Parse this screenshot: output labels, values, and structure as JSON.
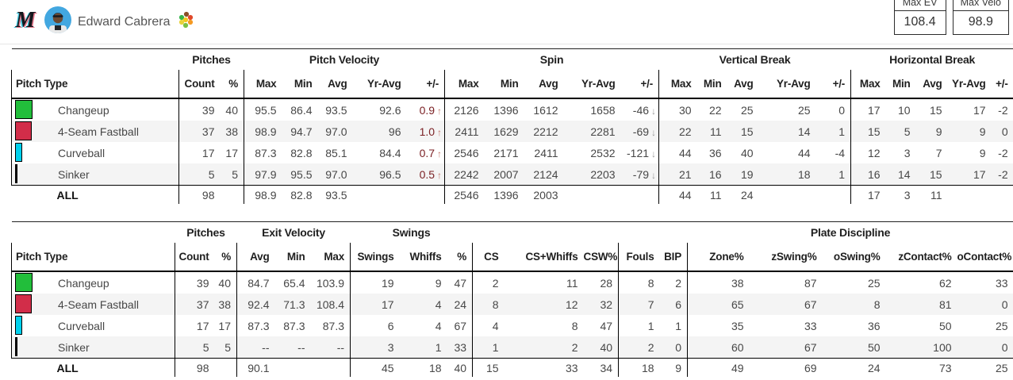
{
  "header": {
    "team": "Miami Marlins",
    "player_name": "Edward Cabrera",
    "stat_boxes": [
      {
        "label": "Max EV",
        "value": "108.4"
      },
      {
        "label": "Max Velo",
        "value": "98.9"
      }
    ]
  },
  "pitch_colors": {
    "changeup": "#22BE3B",
    "four_seam_fastball": "#D22D49",
    "curveball": "#00D1ED",
    "sinker": "#141414"
  },
  "t1": {
    "groups": [
      {
        "label": "",
        "span": 1
      },
      {
        "label": "Pitches",
        "span": 2
      },
      {
        "label": "Pitch Velocity",
        "span": 5
      },
      {
        "label": "Spin",
        "span": 5
      },
      {
        "label": "Vertical Break",
        "span": 5
      },
      {
        "label": "Horizontal Break",
        "span": 5
      }
    ],
    "columns": [
      "Pitch Type",
      "Count",
      "%",
      "Max",
      "Min",
      "Avg",
      "Yr-Avg",
      "+/-",
      "Max",
      "Min",
      "Avg",
      "Yr-Avg",
      "+/-",
      "Max",
      "Min",
      "Avg",
      "Yr-Avg",
      "+/-",
      "Max",
      "Min",
      "Avg",
      "Yr-Avg",
      "+/-"
    ],
    "rows": [
      {
        "pitch": "Changeup",
        "color": "#22BE3B",
        "count": "39",
        "pct": "40",
        "v_max": "95.5",
        "v_min": "86.4",
        "v_avg": "93.5",
        "v_yr": "92.6",
        "v_diff": "0.9",
        "v_arr": "↑",
        "s_max": "2126",
        "s_min": "1396",
        "s_avg": "1612",
        "s_yr": "1658",
        "s_diff": "-46",
        "s_arr": "↓",
        "vb_max": "30",
        "vb_min": "22",
        "vb_avg": "25",
        "vb_yr": "25",
        "vb_diff": "0",
        "hb_max": "17",
        "hb_min": "10",
        "hb_avg": "15",
        "hb_yr": "17",
        "hb_diff": "-2"
      },
      {
        "pitch": "4-Seam Fastball",
        "color": "#D22D49",
        "count": "37",
        "pct": "38",
        "v_max": "98.9",
        "v_min": "94.7",
        "v_avg": "97.0",
        "v_yr": "96",
        "v_diff": "1.0",
        "v_arr": "↑",
        "s_max": "2411",
        "s_min": "1629",
        "s_avg": "2212",
        "s_yr": "2281",
        "s_diff": "-69",
        "s_arr": "↓",
        "vb_max": "22",
        "vb_min": "11",
        "vb_avg": "15",
        "vb_yr": "14",
        "vb_diff": "1",
        "hb_max": "15",
        "hb_min": "5",
        "hb_avg": "9",
        "hb_yr": "9",
        "hb_diff": "0"
      },
      {
        "pitch": "Curveball",
        "color": "#00D1ED",
        "count": "17",
        "pct": "17",
        "v_max": "87.3",
        "v_min": "82.8",
        "v_avg": "85.1",
        "v_yr": "84.4",
        "v_diff": "0.7",
        "v_arr": "↑",
        "s_max": "2546",
        "s_min": "2171",
        "s_avg": "2411",
        "s_yr": "2532",
        "s_diff": "-121",
        "s_arr": "↓",
        "vb_max": "44",
        "vb_min": "36",
        "vb_avg": "40",
        "vb_yr": "44",
        "vb_diff": "-4",
        "hb_max": "12",
        "hb_min": "3",
        "hb_avg": "7",
        "hb_yr": "9",
        "hb_diff": "-2"
      },
      {
        "pitch": "Sinker",
        "color": "#141414",
        "count": "5",
        "pct": "5",
        "v_max": "97.9",
        "v_min": "95.5",
        "v_avg": "97.0",
        "v_yr": "96.5",
        "v_diff": "0.5",
        "v_arr": "↑",
        "s_max": "2242",
        "s_min": "2007",
        "s_avg": "2124",
        "s_yr": "2203",
        "s_diff": "-79",
        "s_arr": "↓",
        "vb_max": "21",
        "vb_min": "16",
        "vb_avg": "19",
        "vb_yr": "18",
        "vb_diff": "1",
        "hb_max": "16",
        "hb_min": "14",
        "hb_avg": "15",
        "hb_yr": "17",
        "hb_diff": "-2"
      },
      {
        "pitch": "ALL",
        "summary": true,
        "count": "98",
        "pct": "",
        "v_max": "98.9",
        "v_min": "82.8",
        "v_avg": "93.5",
        "v_yr": "",
        "v_diff": "",
        "s_max": "2546",
        "s_min": "1396",
        "s_avg": "2003",
        "s_yr": "",
        "s_diff": "",
        "vb_max": "44",
        "vb_min": "11",
        "vb_avg": "24",
        "vb_yr": "",
        "vb_diff": "",
        "hb_max": "17",
        "hb_min": "3",
        "hb_avg": "11",
        "hb_yr": "",
        "hb_diff": ""
      }
    ]
  },
  "t2": {
    "groups": [
      {
        "label": "",
        "span": 1
      },
      {
        "label": "Pitches",
        "span": 2
      },
      {
        "label": "Exit Velocity",
        "span": 3
      },
      {
        "label": "Swings",
        "span": 3
      },
      {
        "label": "",
        "span": 3
      },
      {
        "label": "",
        "span": 2
      },
      {
        "label": "Plate Discipline",
        "span": 5
      }
    ],
    "columns": [
      "Pitch Type",
      "Count",
      "%",
      "Avg",
      "Min",
      "Max",
      "Swings",
      "Whiffs",
      "%",
      "CS",
      "CS+Whiffs",
      "CSW%",
      "Fouls",
      "BIP",
      "Zone%",
      "zSwing%",
      "oSwing%",
      "zContact%",
      "oContact%"
    ],
    "rows": [
      {
        "pitch": "Changeup",
        "color": "#22BE3B",
        "count": "39",
        "pct": "40",
        "ev_avg": "84.7",
        "ev_min": "65.4",
        "ev_max": "103.9",
        "swings": "19",
        "whiffs": "9",
        "sw_pct": "47",
        "cs": "2",
        "cs_whiffs": "11",
        "csw_pct": "28",
        "fouls": "8",
        "bip": "2",
        "zone": "38",
        "zswing": "87",
        "oswing": "25",
        "zcontact": "62",
        "ocontact": "33"
      },
      {
        "pitch": "4-Seam Fastball",
        "color": "#D22D49",
        "count": "37",
        "pct": "38",
        "ev_avg": "92.4",
        "ev_min": "71.3",
        "ev_max": "108.4",
        "swings": "17",
        "whiffs": "4",
        "sw_pct": "24",
        "cs": "8",
        "cs_whiffs": "12",
        "csw_pct": "32",
        "fouls": "7",
        "bip": "6",
        "zone": "65",
        "zswing": "67",
        "oswing": "8",
        "zcontact": "81",
        "ocontact": "0"
      },
      {
        "pitch": "Curveball",
        "color": "#00D1ED",
        "count": "17",
        "pct": "17",
        "ev_avg": "87.3",
        "ev_min": "87.3",
        "ev_max": "87.3",
        "swings": "6",
        "whiffs": "4",
        "sw_pct": "67",
        "cs": "4",
        "cs_whiffs": "8",
        "csw_pct": "47",
        "fouls": "1",
        "bip": "1",
        "zone": "35",
        "zswing": "33",
        "oswing": "36",
        "zcontact": "50",
        "ocontact": "25"
      },
      {
        "pitch": "Sinker",
        "color": "#141414",
        "count": "5",
        "pct": "5",
        "ev_avg": "--",
        "ev_min": "--",
        "ev_max": "--",
        "swings": "3",
        "whiffs": "1",
        "sw_pct": "33",
        "cs": "1",
        "cs_whiffs": "2",
        "csw_pct": "40",
        "fouls": "2",
        "bip": "0",
        "zone": "60",
        "zswing": "67",
        "oswing": "50",
        "zcontact": "100",
        "ocontact": "0"
      },
      {
        "pitch": "ALL",
        "summary": true,
        "count": "98",
        "pct": "",
        "ev_avg": "90.1",
        "ev_min": "",
        "ev_max": "",
        "swings": "45",
        "whiffs": "18",
        "sw_pct": "40",
        "cs": "15",
        "cs_whiffs": "33",
        "csw_pct": "34",
        "fouls": "18",
        "bip": "9",
        "zone": "49",
        "zswing": "69",
        "oswing": "24",
        "zcontact": "73",
        "ocontact": "25"
      }
    ]
  }
}
